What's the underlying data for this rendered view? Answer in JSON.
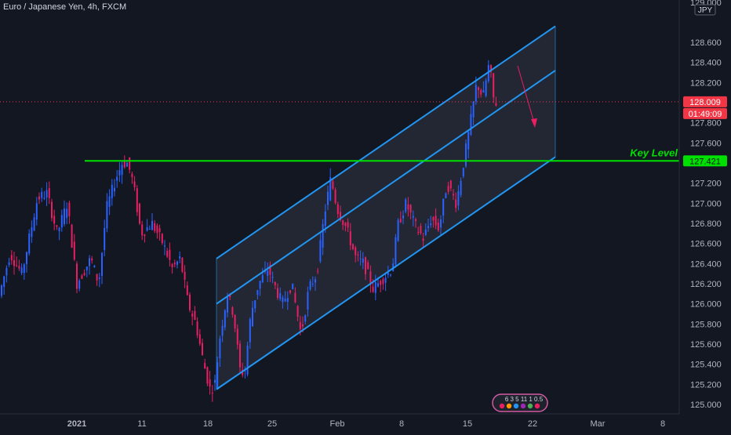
{
  "header": {
    "title": "Euro / Japanese Yen, 4h, FXCM"
  },
  "price_axis": {
    "currency_label": "JPY",
    "top_label": "129.000"
  },
  "annotations": {
    "key_level_label": "Key Level",
    "key_level_value": "127.421",
    "last_price_value": "128.009",
    "countdown_value": "01:49:09"
  },
  "widget": {
    "label": "6 3 5 11 1 0.5"
  },
  "colors": {
    "background": "#131722",
    "up": "#2962ff",
    "down": "#e91e63",
    "channel": "#2196f3",
    "key_level": "#00e000",
    "price_label": "#f23645",
    "text": "#d1d4dc"
  },
  "chart_data": {
    "type": "candlestick",
    "title": "Euro / Japanese Yen, 4h, FXCM",
    "y_ticks": [
      "128.600",
      "128.400",
      "128.200",
      "128.000",
      "127.800",
      "127.600",
      "127.400",
      "127.200",
      "127.000",
      "126.800",
      "126.600",
      "126.400",
      "126.200",
      "126.000",
      "125.800",
      "125.600",
      "125.400",
      "125.200",
      "125.000"
    ],
    "x_ticks": [
      "2021",
      "11",
      "18",
      "25",
      "Feb",
      "8",
      "15",
      "22",
      "Mar",
      "8"
    ],
    "ylim": [
      124.95,
      129.05
    ],
    "key_level": 127.421,
    "last_price": 128.009,
    "price_path": [
      [
        0,
        126.05
      ],
      [
        15,
        126.5
      ],
      [
        30,
        126.3
      ],
      [
        50,
        127.05
      ],
      [
        62,
        127.1
      ],
      [
        75,
        126.7
      ],
      [
        88,
        127.0
      ],
      [
        100,
        126.2
      ],
      [
        118,
        126.45
      ],
      [
        128,
        126.2
      ],
      [
        138,
        126.95
      ],
      [
        150,
        127.25
      ],
      [
        158,
        127.4
      ],
      [
        165,
        127.4
      ],
      [
        172,
        127.2
      ],
      [
        182,
        126.7
      ],
      [
        196,
        126.8
      ],
      [
        210,
        126.6
      ],
      [
        222,
        126.35
      ],
      [
        232,
        126.45
      ],
      [
        242,
        126.0
      ],
      [
        252,
        125.8
      ],
      [
        262,
        125.4
      ],
      [
        270,
        125.15
      ],
      [
        276,
        125.2
      ],
      [
        283,
        125.7
      ],
      [
        292,
        126.1
      ],
      [
        300,
        125.9
      ],
      [
        308,
        125.35
      ],
      [
        314,
        125.3
      ],
      [
        322,
        125.9
      ],
      [
        332,
        126.2
      ],
      [
        344,
        126.35
      ],
      [
        354,
        126.15
      ],
      [
        362,
        126.0
      ],
      [
        374,
        126.2
      ],
      [
        386,
        125.7
      ],
      [
        396,
        126.15
      ],
      [
        406,
        126.3
      ],
      [
        416,
        126.9
      ],
      [
        424,
        127.25
      ],
      [
        432,
        126.95
      ],
      [
        444,
        126.75
      ],
      [
        456,
        126.45
      ],
      [
        466,
        126.4
      ],
      [
        478,
        126.15
      ],
      [
        490,
        126.25
      ],
      [
        502,
        126.35
      ],
      [
        510,
        126.8
      ],
      [
        520,
        127.0
      ],
      [
        530,
        126.8
      ],
      [
        542,
        126.65
      ],
      [
        552,
        126.85
      ],
      [
        562,
        126.75
      ],
      [
        572,
        127.2
      ],
      [
        584,
        127.0
      ],
      [
        592,
        127.35
      ],
      [
        602,
        127.8
      ],
      [
        610,
        128.2
      ],
      [
        618,
        128.05
      ],
      [
        626,
        128.4
      ],
      [
        632,
        128.0
      ]
    ],
    "channel": {
      "start": {
        "x": 276,
        "upper": 126.45,
        "middle": 126.0,
        "lower": 125.15
      },
      "end": {
        "x": 708,
        "upper": 128.76,
        "middle": 128.32,
        "lower": 127.46
      }
    }
  }
}
